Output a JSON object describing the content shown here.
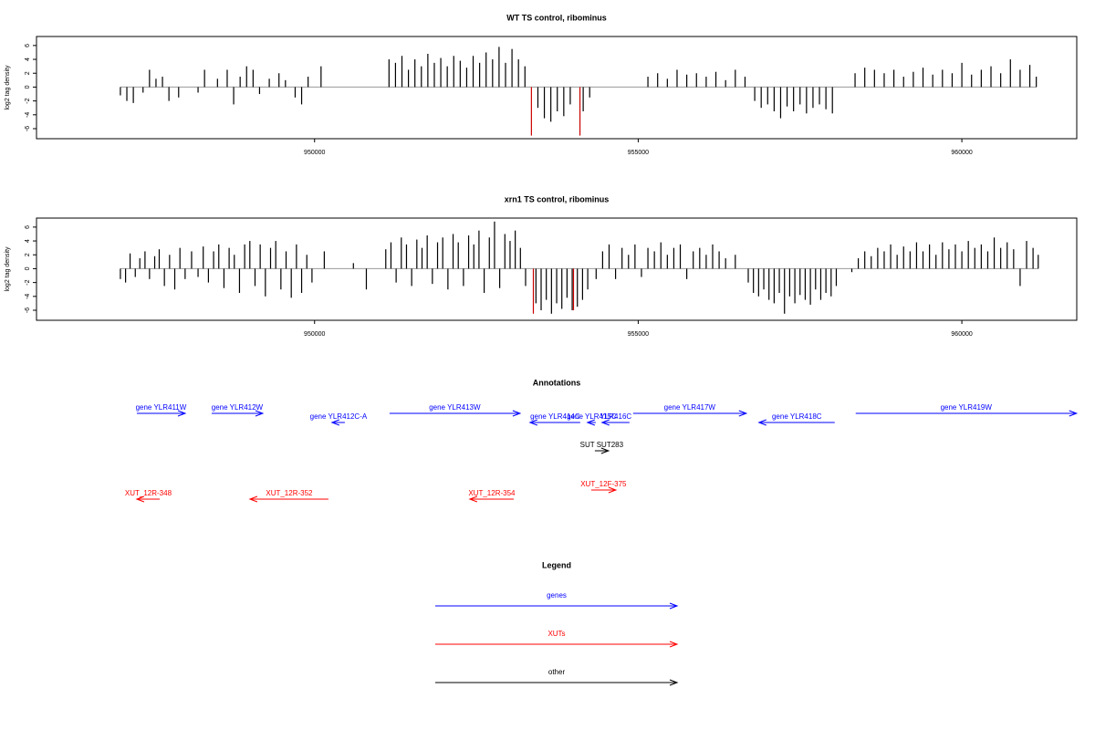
{
  "chart_data": [
    {
      "type": "bar",
      "title": "WT TS control, ribominus",
      "y_label": "log2 tag density",
      "xlim": [
        945704,
        961775
      ],
      "ylim": [
        -7.45,
        7.3
      ],
      "xticks": [
        950000,
        955000,
        960000
      ],
      "yticks": [
        -6,
        -4,
        -2,
        0,
        2,
        4,
        6
      ],
      "series": [
        {
          "color": "#000000",
          "x": [
            947000,
            947100,
            947200,
            947350,
            947450,
            947550,
            947650,
            947750,
            947900,
            948200,
            948300,
            948500,
            948650,
            948750,
            948850,
            948950,
            949050,
            949150,
            949300,
            949450,
            949550,
            949700,
            949800,
            949900,
            950100,
            951150,
            951250,
            951350,
            951450,
            951550,
            951650,
            951750,
            951850,
            951950,
            952050,
            952150,
            952250,
            952350,
            952450,
            952550,
            952650,
            952750,
            952850,
            952950,
            953050,
            953150,
            953250,
            953450,
            953550,
            953650,
            953750,
            953850,
            953950,
            954150,
            954250,
            955150,
            955300,
            955450,
            955600,
            955750,
            955900,
            956050,
            956200,
            956350,
            956500,
            956650,
            956800,
            956900,
            957000,
            957100,
            957200,
            957300,
            957400,
            957500,
            957600,
            957700,
            957800,
            957900,
            958000,
            958350,
            958500,
            958650,
            958800,
            958950,
            959100,
            959250,
            959400,
            959550,
            959700,
            959850,
            960000,
            960150,
            960300,
            960450,
            960600,
            960750,
            960900,
            961050,
            961150
          ],
          "values": [
            -1.2,
            -2,
            -2.3,
            -0.8,
            2.5,
            1.2,
            1.5,
            -2,
            -1.5,
            -0.8,
            2.5,
            1.2,
            2.5,
            -2.5,
            1.5,
            3,
            2.5,
            -1,
            1.2,
            2,
            1,
            -1.5,
            -2.5,
            1.5,
            3,
            4,
            3.5,
            4.5,
            2.5,
            4,
            3,
            4.8,
            3.5,
            4.2,
            3,
            4.5,
            3.8,
            2.8,
            4.5,
            3.5,
            5,
            4,
            5.8,
            3.5,
            5.5,
            4,
            3,
            -3,
            -4.5,
            -5,
            -3.5,
            -4.2,
            -2.5,
            -3.5,
            -1.5,
            1.5,
            2,
            1.2,
            2.5,
            1.8,
            2,
            1.5,
            2.2,
            1,
            2.5,
            1.5,
            -2,
            -3,
            -2.5,
            -3.5,
            -4.5,
            -2.8,
            -3.5,
            -2.5,
            -3.8,
            -3,
            -2.5,
            -3.2,
            -3.8,
            2,
            2.8,
            2.5,
            2,
            2.5,
            1.5,
            2.2,
            2.8,
            1.8,
            2.5,
            2,
            3.5,
            1.8,
            2.5,
            3,
            2,
            4,
            2.5,
            3.2,
            1.5
          ]
        },
        {
          "color": "#cc0000",
          "x": [
            953350,
            954100
          ],
          "values": [
            -7,
            -7
          ]
        }
      ]
    },
    {
      "type": "bar",
      "title": "xrn1 TS control, ribominus",
      "y_label": "log2 tag density",
      "xlim": [
        945704,
        961775
      ],
      "ylim": [
        -7.45,
        7.3
      ],
      "xticks": [
        950000,
        955000,
        960000
      ],
      "yticks": [
        -6,
        -4,
        -2,
        0,
        2,
        4,
        6
      ],
      "series": [
        {
          "color": "#000000",
          "x": [
            947000,
            947080,
            947150,
            947230,
            947300,
            947380,
            947450,
            947530,
            947600,
            947680,
            947760,
            947840,
            947920,
            948000,
            948100,
            948200,
            948280,
            948360,
            948440,
            948520,
            948600,
            948680,
            948760,
            948840,
            948920,
            949000,
            949080,
            949160,
            949240,
            949320,
            949400,
            949480,
            949560,
            949640,
            949720,
            949800,
            949880,
            949960,
            950150,
            950600,
            950800,
            951100,
            951180,
            951260,
            951340,
            951420,
            951500,
            951580,
            951660,
            951740,
            951820,
            951900,
            951980,
            952060,
            952140,
            952220,
            952300,
            952380,
            952460,
            952540,
            952620,
            952700,
            952780,
            952860,
            952940,
            953020,
            953100,
            953180,
            953260,
            953420,
            953500,
            953580,
            953660,
            953740,
            953820,
            953900,
            953980,
            954060,
            954140,
            954220,
            954350,
            954450,
            954550,
            954650,
            954750,
            954850,
            954950,
            955050,
            955150,
            955250,
            955350,
            955450,
            955550,
            955650,
            955750,
            955850,
            955950,
            956050,
            956150,
            956250,
            956350,
            956500,
            956700,
            956780,
            956860,
            956940,
            957020,
            957100,
            957180,
            957260,
            957340,
            957420,
            957500,
            957580,
            957660,
            957740,
            957820,
            957900,
            957980,
            958060,
            958300,
            958400,
            958500,
            958600,
            958700,
            958800,
            958900,
            959000,
            959100,
            959200,
            959300,
            959400,
            959500,
            959600,
            959700,
            959800,
            959900,
            960000,
            960100,
            960200,
            960300,
            960400,
            960500,
            960600,
            960700,
            960800,
            960900,
            961000,
            961100,
            961180
          ],
          "values": [
            -1.5,
            -2,
            2.2,
            -1.2,
            1.5,
            2.5,
            -1.5,
            1.8,
            2.8,
            -2.5,
            2,
            -3,
            3,
            -1.5,
            2.5,
            -1.2,
            3.2,
            -2,
            2.5,
            3.5,
            -2.8,
            3,
            2,
            -3.5,
            3.5,
            4,
            -2.5,
            3.5,
            -4,
            3,
            4,
            -3,
            2.5,
            -4.2,
            3.5,
            -3.5,
            2,
            -2,
            2.5,
            0.8,
            -3,
            2.8,
            3.8,
            -2,
            4.5,
            3.5,
            -2.5,
            4.2,
            3,
            4.8,
            -2.2,
            3.8,
            4.5,
            -3,
            5,
            3.8,
            -2.5,
            4.8,
            3.5,
            5.5,
            -3.5,
            4.5,
            6.8,
            -2.8,
            5,
            4,
            5.5,
            3,
            -2.5,
            -5,
            -6,
            -4.5,
            -6.5,
            -5,
            -5.8,
            -4.2,
            -6,
            -5.5,
            -4.5,
            -3,
            -1.5,
            2.5,
            3.5,
            -1.5,
            3,
            2,
            3.5,
            -1.2,
            3,
            2.5,
            3.8,
            2,
            3,
            3.5,
            -1.5,
            2.5,
            3,
            2,
            3.5,
            2.5,
            1.5,
            2,
            -2,
            -3.5,
            -4,
            -3,
            -4.5,
            -5,
            -3.5,
            -6.5,
            -4,
            -5,
            -3.8,
            -4.5,
            -5.2,
            -3,
            -4.5,
            -3.5,
            -4,
            -2.5,
            -0.5,
            1.5,
            2.5,
            1.8,
            3,
            2.5,
            3.5,
            2,
            3.2,
            2.5,
            3.8,
            2.5,
            3.5,
            2,
            3.8,
            2.8,
            3.5,
            2.5,
            4,
            3,
            3.5,
            2.5,
            4.5,
            3,
            3.8,
            2.8,
            -2.5,
            4,
            3,
            2
          ]
        },
        {
          "color": "#cc0000",
          "x": [
            953380,
            954000
          ],
          "values": [
            -6.5,
            -6
          ]
        }
      ]
    }
  ],
  "annotations": {
    "title": "Annotations",
    "features": [
      {
        "label": "gene YLR411W",
        "start": 947254,
        "end": 948001,
        "strand": "+",
        "kind": "gene",
        "color": "#0000ff"
      },
      {
        "label": "gene YLR412W",
        "start": 948410,
        "end": 949199,
        "strand": "+",
        "kind": "gene",
        "color": "#0000ff"
      },
      {
        "label": "gene YLR412C-A",
        "start": 950270,
        "end": 950468,
        "strand": "-",
        "kind": "gene",
        "color": "#0000ff"
      },
      {
        "label": "gene YLR413W",
        "start": 951158,
        "end": 953174,
        "strand": "+",
        "kind": "gene",
        "color": "#0000ff"
      },
      {
        "label": "gene YLR414C",
        "start": 953329,
        "end": 954104,
        "strand": "-",
        "kind": "gene",
        "color": "#0000ff"
      },
      {
        "label": "gene YLR415C",
        "start": 954217,
        "end": 954344,
        "strand": "-",
        "kind": "gene",
        "color": "#0000ff"
      },
      {
        "label": "YLR416C",
        "start": 954442,
        "end": 954865,
        "strand": "-",
        "kind": "gene",
        "color": "#0000ff"
      },
      {
        "label": "gene YLR417W",
        "start": 954921,
        "end": 956669,
        "strand": "+",
        "kind": "gene",
        "color": "#0000ff"
      },
      {
        "label": "gene YLR418C",
        "start": 956866,
        "end": 958036,
        "strand": "-",
        "kind": "gene",
        "color": "#0000ff"
      },
      {
        "label": "gene YLR419W",
        "start": 958360,
        "end": 961771,
        "strand": "+",
        "kind": "gene",
        "color": "#0000ff"
      },
      {
        "label": "SUT SUT283",
        "start": 954330,
        "end": 954541,
        "strand": "+",
        "kind": "sut",
        "color": "#000000"
      },
      {
        "label": "XUT_12R-348",
        "start": 947254,
        "end": 947607,
        "strand": "-",
        "kind": "xut",
        "color": "#ff0000"
      },
      {
        "label": "XUT_12R-352",
        "start": 949002,
        "end": 950214,
        "strand": "-",
        "kind": "xut",
        "color": "#ff0000"
      },
      {
        "label": "XUT_12R-354",
        "start": 952399,
        "end": 953076,
        "strand": "-",
        "kind": "xut",
        "color": "#ff0000"
      },
      {
        "label": "XUT_12F-375",
        "start": 954273,
        "end": 954654,
        "strand": "+",
        "kind": "xut",
        "color": "#ff0000"
      }
    ]
  },
  "legend": {
    "title": "Legend",
    "items": [
      {
        "label": "genes",
        "color": "#0000ff"
      },
      {
        "label": "XUTs",
        "color": "#ff0000"
      },
      {
        "label": "other",
        "color": "#000000"
      }
    ]
  }
}
